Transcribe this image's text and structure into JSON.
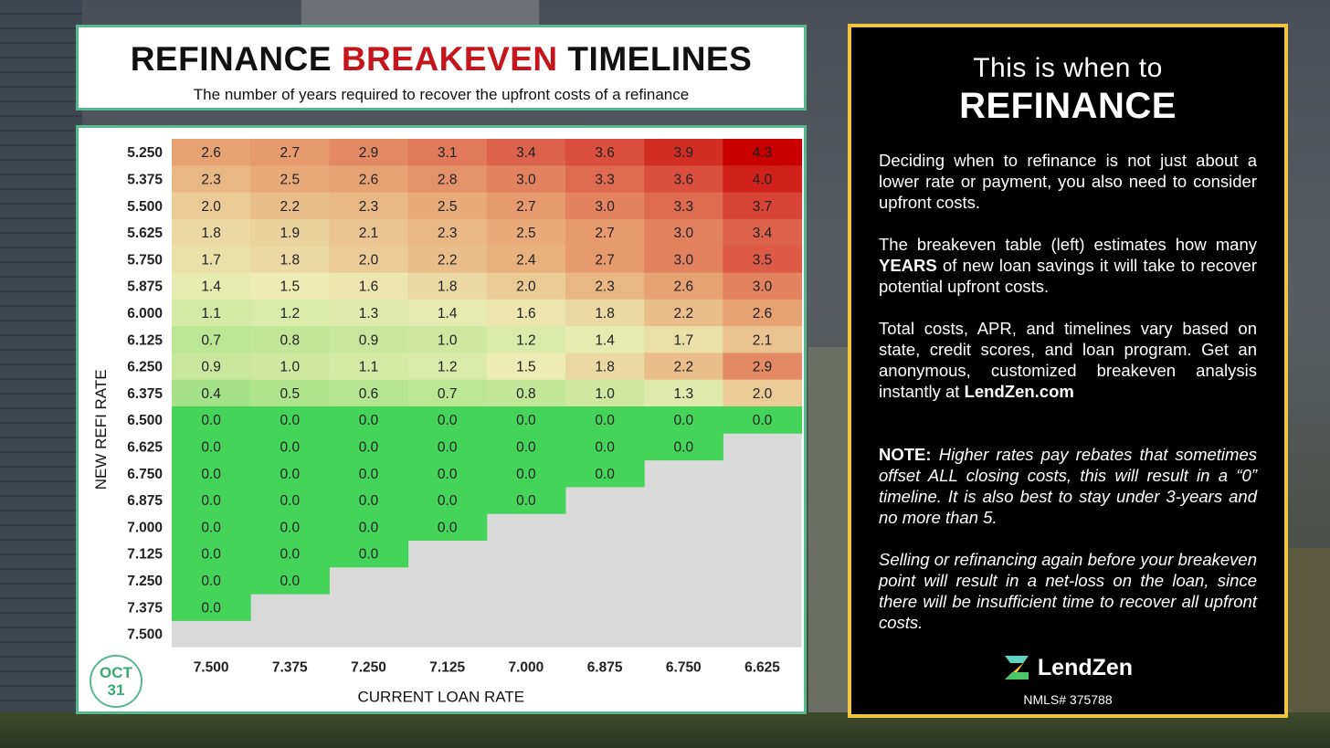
{
  "title": {
    "part1": "REFINANCE ",
    "accent": "BREAKEVEN",
    "part2": " TIMELINES"
  },
  "subtitle": "The number of years required to recover the upfront costs of a refinance",
  "date_badge": {
    "month": "OCT",
    "day": "31"
  },
  "colors": {
    "accent_red": "#c4161c",
    "border_green": "#56b88c",
    "panel_gold": "#f0c640",
    "zero_green": "#45d45a",
    "empty_gray": "#d9d9d9"
  },
  "chart_data": {
    "type": "heatmap",
    "xlabel": "CURRENT LOAN RATE",
    "ylabel": "NEW REFI RATE",
    "x": [
      "7.500",
      "7.375",
      "7.250",
      "7.125",
      "7.000",
      "6.875",
      "6.750",
      "6.625"
    ],
    "y": [
      "5.250",
      "5.375",
      "5.500",
      "5.625",
      "5.750",
      "5.875",
      "6.000",
      "6.125",
      "6.250",
      "6.375",
      "6.500",
      "6.625",
      "6.750",
      "6.875",
      "7.000",
      "7.125",
      "7.250",
      "7.375",
      "7.500"
    ],
    "values": [
      [
        "2.6",
        "2.7",
        "2.9",
        "3.1",
        "3.4",
        "3.6",
        "3.9",
        "4.3"
      ],
      [
        "2.3",
        "2.5",
        "2.6",
        "2.8",
        "3.0",
        "3.3",
        "3.6",
        "4.0"
      ],
      [
        "2.0",
        "2.2",
        "2.3",
        "2.5",
        "2.7",
        "3.0",
        "3.3",
        "3.7"
      ],
      [
        "1.8",
        "1.9",
        "2.1",
        "2.3",
        "2.5",
        "2.7",
        "3.0",
        "3.4"
      ],
      [
        "1.7",
        "1.8",
        "2.0",
        "2.2",
        "2.4",
        "2.7",
        "3.0",
        "3.5"
      ],
      [
        "1.4",
        "1.5",
        "1.6",
        "1.8",
        "2.0",
        "2.3",
        "2.6",
        "3.0"
      ],
      [
        "1.1",
        "1.2",
        "1.3",
        "1.4",
        "1.6",
        "1.8",
        "2.2",
        "2.6"
      ],
      [
        "0.7",
        "0.8",
        "0.9",
        "1.0",
        "1.2",
        "1.4",
        "1.7",
        "2.1"
      ],
      [
        "0.9",
        "1.0",
        "1.1",
        "1.2",
        "1.5",
        "1.8",
        "2.2",
        "2.9"
      ],
      [
        "0.4",
        "0.5",
        "0.6",
        "0.7",
        "0.8",
        "1.0",
        "1.3",
        "2.0"
      ],
      [
        "0.0",
        "0.0",
        "0.0",
        "0.0",
        "0.0",
        "0.0",
        "0.0",
        "0.0"
      ],
      [
        "0.0",
        "0.0",
        "0.0",
        "0.0",
        "0.0",
        "0.0",
        "0.0",
        null
      ],
      [
        "0.0",
        "0.0",
        "0.0",
        "0.0",
        "0.0",
        "0.0",
        null,
        null
      ],
      [
        "0.0",
        "0.0",
        "0.0",
        "0.0",
        "0.0",
        null,
        null,
        null
      ],
      [
        "0.0",
        "0.0",
        "0.0",
        "0.0",
        null,
        null,
        null,
        null
      ],
      [
        "0.0",
        "0.0",
        "0.0",
        null,
        null,
        null,
        null,
        null
      ],
      [
        "0.0",
        "0.0",
        null,
        null,
        null,
        null,
        null,
        null
      ],
      [
        "0.0",
        null,
        null,
        null,
        null,
        null,
        null,
        null
      ],
      [
        null,
        null,
        null,
        null,
        null,
        null,
        null,
        null
      ]
    ],
    "color_scale": "green (0) to yellow (~1.5) to red (4.3+); blank cells gray"
  },
  "panel": {
    "heading_line1": "This is when to",
    "heading_line2": "REFINANCE",
    "para1": "Deciding when to refinance is not just about a lower rate or payment, you also need to consider upfront costs.",
    "para2_before": "The breakeven table (left) estimates how many ",
    "para2_bold": "YEARS",
    "para2_after": " of new loan savings it will take to recover potential upfront costs.",
    "para3_before": "Total costs, APR, and timelines vary based on state, credit scores, and loan program. Get an anonymous, customized breakeven analysis instantly at ",
    "para3_bold": "LendZen.com",
    "note_label": "NOTE:",
    "note_text": " Higher rates pay rebates that sometimes offset ALL closing costs, this will result in a “0” timeline. It is also best to stay under 3-years and no more than 5.",
    "para5": "Selling or refinancing again before your breakeven point will result in a net-loss on the loan, since there will be insufficient time to recover all upfront costs.",
    "logo_text": "LendZen",
    "logo_icon": "lendzen-z-logo",
    "nmls": "NMLS# 375788"
  }
}
